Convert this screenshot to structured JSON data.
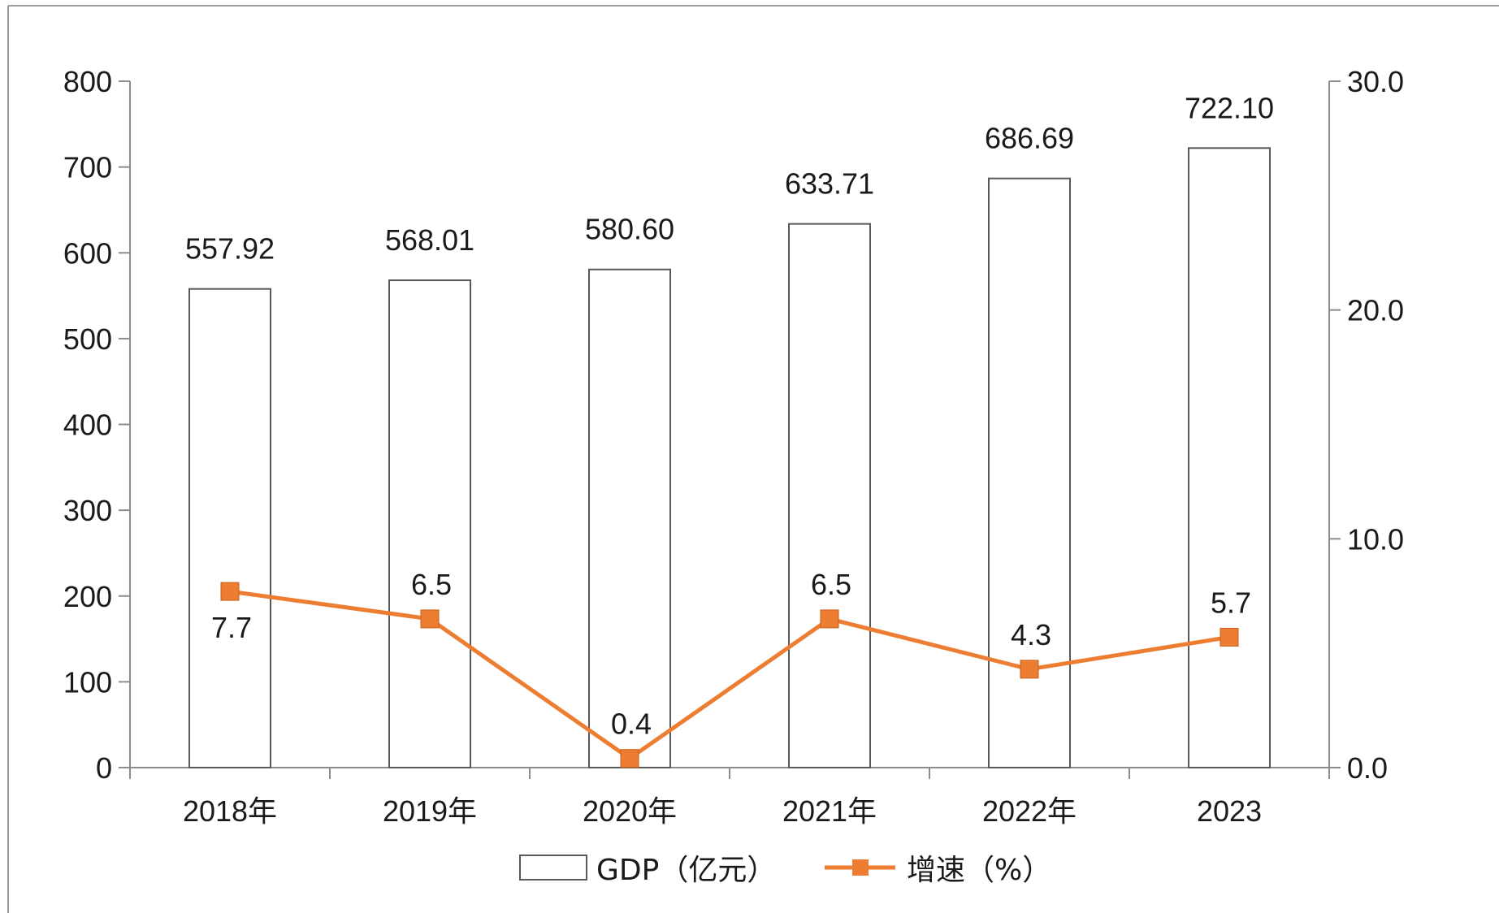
{
  "chart_data": {
    "type": "bar",
    "categories": [
      "2018年",
      "2019年",
      "2020年",
      "2021年",
      "2022年",
      "2023"
    ],
    "series": [
      {
        "name": "GDP（亿元）",
        "type": "bar",
        "axis": "left",
        "values": [
          557.92,
          568.01,
          580.6,
          633.71,
          686.69,
          722.1
        ],
        "labels": [
          "557.92",
          "568.01",
          "580.60",
          "633.71",
          "686.69",
          "722.10"
        ],
        "color": "#ffffff",
        "border_color": "#595959"
      },
      {
        "name": "增速（%）",
        "type": "line",
        "axis": "right",
        "values": [
          7.7,
          6.5,
          0.4,
          6.5,
          4.3,
          5.7
        ],
        "labels": [
          "7.7",
          "6.5",
          "0.4",
          "6.5",
          "4.3",
          "5.7"
        ],
        "label_positions": [
          "below",
          "above",
          "above",
          "above",
          "above",
          "above"
        ],
        "color": "#ed7d31",
        "marker": "square"
      }
    ],
    "y_left": {
      "lim": [
        0,
        800
      ],
      "ticks": [
        0,
        100,
        200,
        300,
        400,
        500,
        600,
        700,
        800
      ],
      "tick_labels": [
        "0",
        "100",
        "200",
        "300",
        "400",
        "500",
        "600",
        "700",
        "800"
      ]
    },
    "y_right": {
      "lim": [
        0,
        30
      ],
      "ticks": [
        0,
        10,
        20,
        30
      ],
      "tick_labels": [
        "0.0",
        "10.0",
        "20.0",
        "30.0"
      ]
    },
    "grid": false,
    "legend_position": "bottom-center"
  }
}
